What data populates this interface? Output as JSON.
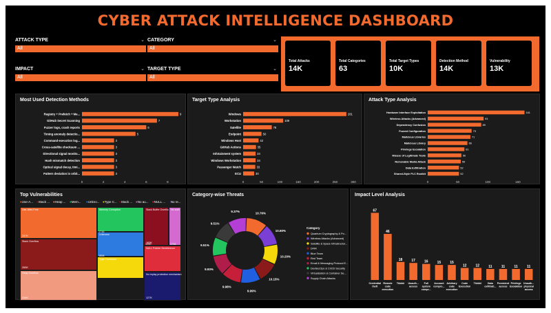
{
  "dashboard": {
    "title": "CYBER ATTACK INTELLIGENCE DASHBOARD",
    "colors": {
      "accent": "#f26a2e",
      "panel": "#1b1b1b",
      "background": "#000000"
    }
  },
  "slicers": [
    {
      "label": "ATTACK TYPE",
      "value": "All"
    },
    {
      "label": "CATEGORY",
      "value": "All"
    },
    {
      "label": "IMPACT",
      "value": "All"
    },
    {
      "label": "TARGET TYPE",
      "value": "All"
    }
  ],
  "kpis": [
    {
      "label": "Total Attacks",
      "value": "14K"
    },
    {
      "label": "Total Categories",
      "value": "63"
    },
    {
      "label": "Total Target Types",
      "value": "10K"
    },
    {
      "label": "Detection Method",
      "value": "14K"
    },
    {
      "label": "Vulnerability",
      "value": "13K"
    }
  ],
  "chart_data": [
    {
      "type": "bar",
      "orientation": "horizontal",
      "title": "Most Used Detection Methods",
      "categories": [
        "Registry + Prefetch + Me...",
        "GitHub Secret Scanning",
        "Fuzzer logs, crash reports",
        "Timing anomaly detectio...",
        "Command-execution log...",
        "Cross-satellite checksum ...",
        "Directional signal monito...",
        "Hash mismatch detection",
        "Optical signal decay, timi...",
        "Pattern deviation in orbit..."
      ],
      "values": [
        9,
        7,
        6,
        5,
        3,
        3,
        3,
        3,
        3,
        3
      ],
      "xticks": [
        0,
        2,
        4,
        6,
        8
      ],
      "xlim": [
        0,
        9
      ],
      "color": "#f26a2e"
    },
    {
      "type": "bar",
      "orientation": "horizontal",
      "title": "Target Type Analysis",
      "categories": [
        "Windows",
        "Workstation",
        "Satellite",
        "Endpoint",
        "Windows Host",
        "GitHub Actions",
        "Infotainment system",
        "Windows Workstation",
        "Passenger Watch",
        "ECU"
      ],
      "values": [
        281,
        109,
        78,
        50,
        42,
        35,
        34,
        34,
        33,
        30
      ],
      "xticks": [
        0,
        50,
        100,
        150,
        200,
        250,
        300
      ],
      "xlim": [
        0,
        300
      ],
      "color": "#f26a2e"
    },
    {
      "type": "bar",
      "orientation": "horizontal",
      "title": "Attack Type Analysis",
      "categories": [
        "Hardware Interface Exploitation",
        "Wireless Attacks (Advanced)",
        "Dependency Confusion",
        "Fuzzed Configuration",
        "Malicious Libraries",
        "Malicious Library",
        "Privilege Escalation",
        "Misuse of Legitimate Tools",
        "Removable Media Attack",
        "Data Exfiltration",
        "Shared-Style PLC Rootkit"
      ],
      "values": [
        161,
        93,
        89,
        73,
        71,
        66,
        61,
        56,
        55,
        52,
        52
      ],
      "xticks": [
        0,
        50,
        100,
        150
      ],
      "xlim": [
        0,
        165
      ],
      "color": "#f26a2e"
    },
    {
      "type": "heatmap",
      "title": "Top Vulnerabilities",
      "legend": [
        "Use-A...",
        "Stack ...",
        "Heap ...",
        "Mem...",
        "Unkno...",
        "Type C...",
        "Stack ...",
        "No au...",
        "NULL ...",
        "No re..."
      ],
      "cells": [
        {
          "label": "Use-After-Free",
          "value": "337K",
          "color": "#f26a2e"
        },
        {
          "label": "Stack Overflow",
          "value": "265K",
          "color": "#8b1a1a"
        },
        {
          "label": "Heap Overflow",
          "value": "234K",
          "color": "#f29a80"
        },
        {
          "label": "Memory Corruption",
          "value": "",
          "color": "#22c55e"
        },
        {
          "label": "Unknown",
          "value": "",
          "color": "#2d7be0"
        },
        {
          "label": "Type Confusion",
          "value": "",
          "color": "#f5d90a"
        },
        {
          "label": "Stack Buffer Overflow",
          "value": "163K",
          "color": "#8b0f1f"
        },
        {
          "label": "No auth",
          "value": "",
          "color": "#d46ad0"
        },
        {
          "label": "NULL Pointer Dereference",
          "value": "",
          "color": "#e02d3c"
        },
        {
          "label": "No replay protection mechanism",
          "value": "127K",
          "color": "#1a1a6e"
        }
      ],
      "extra_values": [
        "1716",
        "1508",
        "1250",
        "1736"
      ]
    },
    {
      "type": "pie",
      "title": "Category-wise Threats",
      "legend_title": "Category",
      "series": [
        {
          "name": "Quantum Cryptography & Po...",
          "value": 10.76,
          "color": "#f26a2e"
        },
        {
          "name": "Wireless Attacks (Advanced)",
          "value": 10.6,
          "color": "#7b3fd6"
        },
        {
          "name": "Satellite & Space Infrastructur...",
          "value": 10.2,
          "color": "#f5d90a"
        },
        {
          "name": "DFIR",
          "value": 10.15,
          "color": "#8b1a1a"
        },
        {
          "name": "Blue Team",
          "value": 9.99,
          "color": "#1f5fe0"
        },
        {
          "name": "Red Team",
          "value": 9.98,
          "color": "#c61f3a"
        },
        {
          "name": "Email & Messaging Protocol E...",
          "value": 9.93,
          "color": "#b11d4a"
        },
        {
          "name": "DevSecOps & CI/CD Security",
          "value": 9.51,
          "color": "#22c55e"
        },
        {
          "name": "Virtualization & Container Se...",
          "value": 9.51,
          "color": "#3a3a3a"
        },
        {
          "name": "Supply Chain Attacks",
          "value": 9.37,
          "color": "#b43fd6"
        }
      ],
      "labels": [
        "10.76%",
        "10.60%",
        "10.20%",
        "10.15%",
        "9.99%",
        "9.98%",
        "9.93%",
        "9.51%",
        "9.51%",
        "9.37%"
      ]
    },
    {
      "type": "bar",
      "orientation": "vertical",
      "title": "Impact Level Analysis",
      "categories": [
        "Credential theft",
        "Remote code execution",
        "Tkkkkl",
        "Unauth... access",
        "Full system compr...",
        "Account compro...",
        "Arbitrary code execution",
        "Code Execution",
        "Tkkkkl",
        "Data exfiltrati...",
        "Persistent access",
        "Privilege Escalation",
        "Unauth... physical access"
      ],
      "values": [
        67,
        46,
        18,
        17,
        16,
        15,
        15,
        12,
        12,
        11,
        11,
        11,
        11
      ],
      "ylim": [
        0,
        70
      ],
      "color": "#f26a2e"
    }
  ]
}
